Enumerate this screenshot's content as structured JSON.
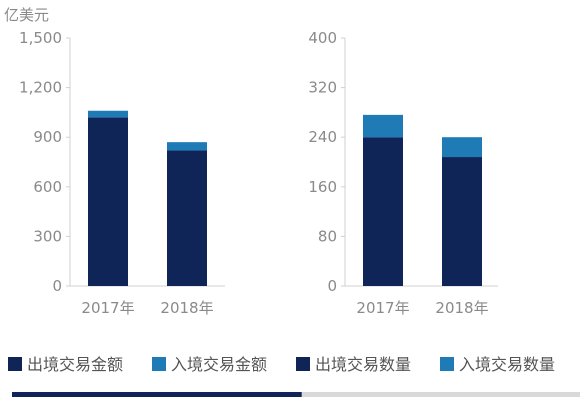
{
  "unit_label": "亿美元",
  "colors": {
    "dark_series": "#0f2557",
    "light_series": "#1e7bb5",
    "axis": "#d0d0d0",
    "progress_fill": "#0f2557",
    "progress_track": "#d9d9d9"
  },
  "legend": [
    {
      "label": "出境交易金额",
      "color": "#0f2557"
    },
    {
      "label": "入境交易金额",
      "color": "#1e7bb5"
    },
    {
      "label": "出境交易数量",
      "color": "#0f2557"
    },
    {
      "label": "入境交易数量",
      "color": "#1e7bb5"
    }
  ],
  "progress": {
    "value": 0.51
  },
  "chart_data": [
    {
      "type": "bar",
      "stacked": true,
      "categories": [
        "2017年",
        "2018年"
      ],
      "series": [
        {
          "name": "出境交易金额",
          "values": [
            1020,
            820
          ]
        },
        {
          "name": "入境交易金额",
          "values": [
            40,
            50
          ]
        }
      ],
      "ylim": [
        0,
        1500
      ],
      "yticks": [
        "0",
        "300",
        "600",
        "900",
        "1,200",
        "1,500"
      ],
      "ytick_values": [
        0,
        300,
        600,
        900,
        1200,
        1500
      ],
      "ylabel": "亿美元",
      "grid": false
    },
    {
      "type": "bar",
      "stacked": true,
      "categories": [
        "2017年",
        "2018年"
      ],
      "series": [
        {
          "name": "出境交易数量",
          "values": [
            240,
            208
          ]
        },
        {
          "name": "入境交易数量",
          "values": [
            36,
            32
          ]
        }
      ],
      "ylim": [
        0,
        400
      ],
      "yticks": [
        "0",
        "80",
        "160",
        "240",
        "320",
        "400"
      ],
      "ytick_values": [
        0,
        80,
        160,
        240,
        320,
        400
      ],
      "grid": false
    }
  ]
}
